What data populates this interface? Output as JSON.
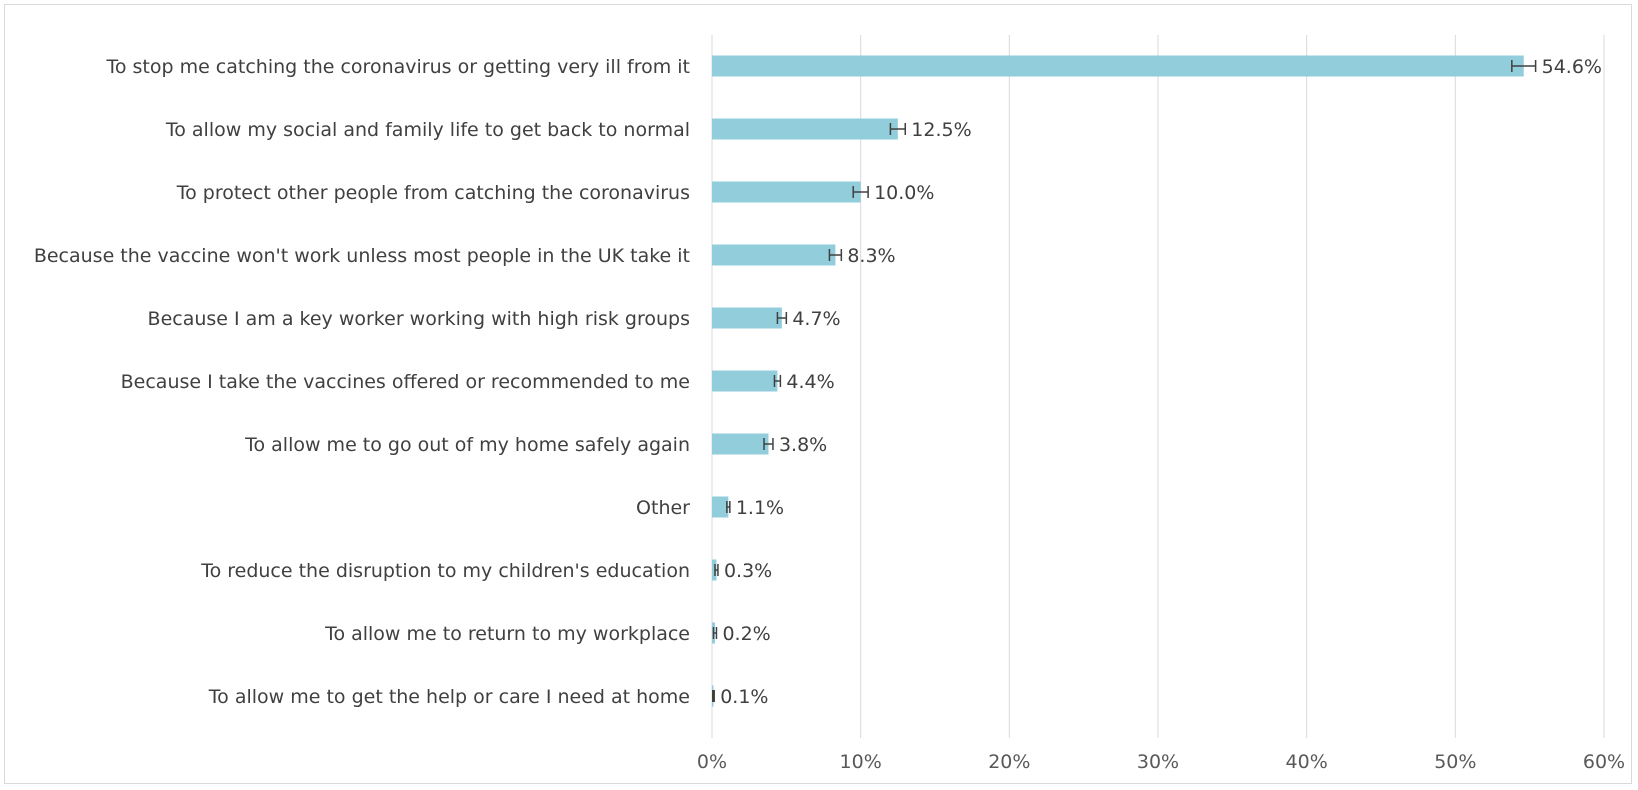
{
  "chart_data": {
    "type": "bar",
    "orientation": "horizontal",
    "categories": [
      "To stop me catching the coronavirus or getting very ill from it",
      "To allow my social and family life to get back to normal",
      "To protect other people from catching the coronavirus",
      "Because the vaccine won't work unless most people in the UK take it",
      "Because I am a key worker working with high risk groups",
      "Because I take the vaccines offered or recommended to me",
      "To allow me to go out of my home safely again",
      "Other",
      "To reduce the disruption to my children's education",
      "To allow me to return to my workplace",
      "To allow me to get the help or care I need at home"
    ],
    "values": [
      54.6,
      12.5,
      10.0,
      8.3,
      4.7,
      4.4,
      3.8,
      1.1,
      0.3,
      0.2,
      0.1
    ],
    "error": [
      0.8,
      0.5,
      0.5,
      0.4,
      0.3,
      0.2,
      0.3,
      0.1,
      0.1,
      0.1,
      0.05
    ],
    "data_labels": [
      "54.6%",
      "12.5%",
      "10.0%",
      "8.3%",
      "4.7%",
      "4.4%",
      "3.8%",
      "1.1%",
      "0.3%",
      "0.2%",
      "0.1%"
    ],
    "xlim": [
      0,
      60
    ],
    "x_ticks": [
      0,
      10,
      20,
      30,
      40,
      50,
      60
    ],
    "x_tick_labels": [
      "0%",
      "10%",
      "20%",
      "30%",
      "40%",
      "50%",
      "60%"
    ],
    "title": "",
    "xlabel": "",
    "ylabel": "",
    "grid": "vertical",
    "legend": "none",
    "colors": {
      "bar": "#92cddc",
      "error_bar": "#404040",
      "grid": "#d9d9d9",
      "label": "#404040"
    }
  }
}
